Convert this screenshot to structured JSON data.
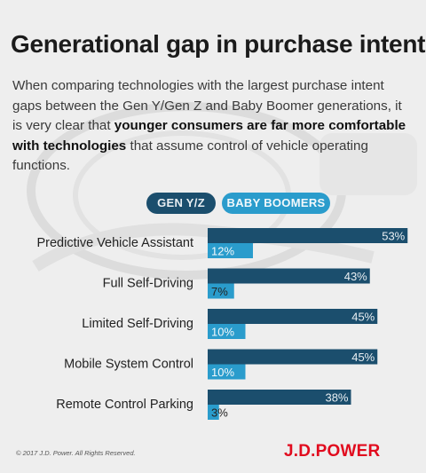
{
  "header": {
    "title": "Generational gap in purchase intent",
    "lead_before": "When comparing technologies with the largest purchase intent gaps between the Gen Y/Gen Z and Baby Boomer generations, it is very clear that ",
    "lead_bold": "younger consumers are far more comfortable with technologies",
    "lead_after": " that assume control of vehicle operating functions."
  },
  "colors": {
    "gen_yz": "#1b4e6d",
    "baby_boomers": "#2a9ccc",
    "brand": "#e10b1e"
  },
  "chart_data": {
    "type": "bar",
    "orientation": "horizontal",
    "categories": [
      "Predictive Vehicle Assistant",
      "Full Self-Driving",
      "Limited Self-Driving",
      "Mobile System Control",
      "Remote Control Parking"
    ],
    "series": [
      {
        "name": "GEN Y/Z",
        "values": [
          53,
          43,
          45,
          45,
          38
        ],
        "labels": [
          "53%",
          "43%",
          "45%",
          "45%",
          "38%"
        ]
      },
      {
        "name": "BABY BOOMERS",
        "values": [
          12,
          7,
          10,
          10,
          3
        ],
        "labels": [
          "12%",
          "7%",
          "10%",
          "10%",
          "3%"
        ]
      }
    ],
    "legend_position": "top",
    "grid": false
  },
  "footer": {
    "copyright": "© 2017 J.D. Power. All Rights Reserved.",
    "brand": "J.D.POWER"
  }
}
